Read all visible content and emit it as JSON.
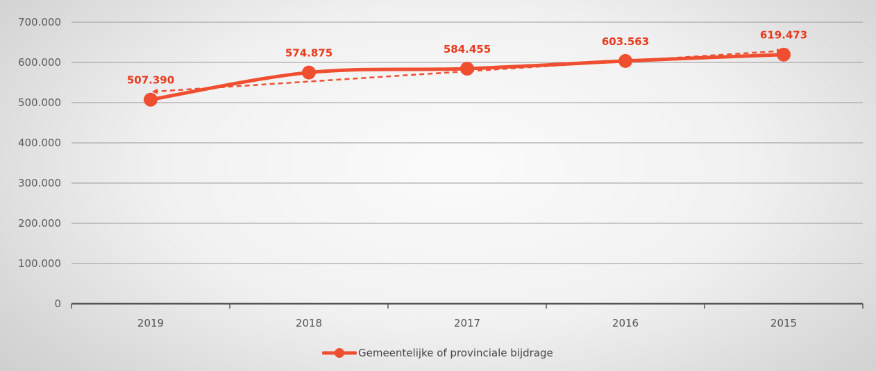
{
  "chart_data": {
    "type": "line",
    "categories": [
      "2019",
      "2018",
      "2017",
      "2016",
      "2015"
    ],
    "series": [
      {
        "name": "Gemeentelijke of provinciale bijdrage",
        "values": [
          507390,
          574875,
          584455,
          603563,
          619473
        ],
        "data_labels": [
          "507.390",
          "574.875",
          "584.455",
          "603.563",
          "619.473"
        ]
      }
    ],
    "ylim": [
      0,
      700000
    ],
    "yticks": [
      0,
      100000,
      200000,
      300000,
      400000,
      500000,
      600000,
      700000
    ],
    "ytick_labels": [
      "0",
      "100.000",
      "200.000",
      "300.000",
      "400.000",
      "500.000",
      "600.000",
      "700.000"
    ],
    "trendline": {
      "style": "dashed",
      "type": "linear",
      "direction": "arrows at ends"
    },
    "grid": true,
    "legend_position": "bottom",
    "colors": {
      "series": "#f04e30",
      "label": "#e83a1c",
      "grid": "#9a9a9a",
      "axis": "#555555"
    }
  }
}
